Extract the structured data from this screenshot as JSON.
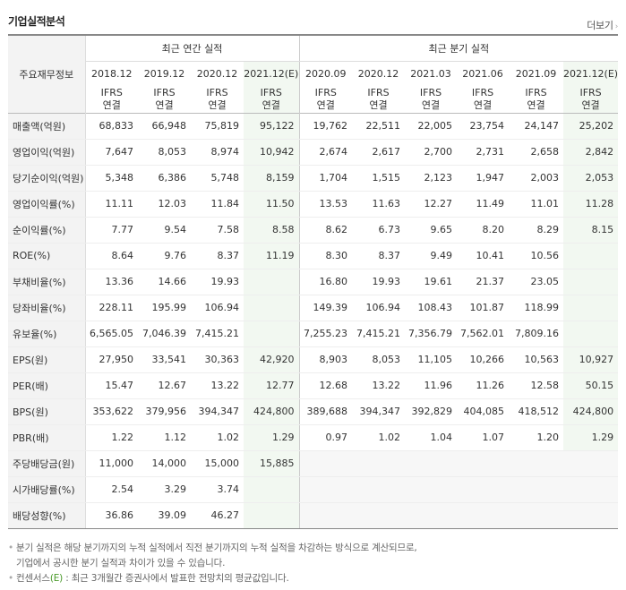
{
  "header": {
    "title": "기업실적분석",
    "more_label": "더보기",
    "more_arrow": "›"
  },
  "table": {
    "corner_label": "주요재무정보",
    "group_annual": "최근 연간 실적",
    "group_quarterly": "최근 분기 실적",
    "periods": [
      "2018.12",
      "2019.12",
      "2020.12",
      "2021.12(E)",
      "2020.09",
      "2020.12",
      "2021.03",
      "2021.06",
      "2021.09",
      "2021.12(E)"
    ],
    "ifrs_top": "IFRS",
    "ifrs_bottom": "연결",
    "rows": [
      {
        "label": "매출액(억원)",
        "values": [
          "68,833",
          "66,948",
          "75,819",
          "95,122",
          "19,762",
          "22,511",
          "22,005",
          "23,754",
          "24,147",
          "25,202"
        ]
      },
      {
        "label": "영업이익(억원)",
        "values": [
          "7,647",
          "8,053",
          "8,974",
          "10,942",
          "2,674",
          "2,617",
          "2,700",
          "2,731",
          "2,658",
          "2,842"
        ]
      },
      {
        "label": "당기순이익(억원)",
        "values": [
          "5,348",
          "6,386",
          "5,748",
          "8,159",
          "1,704",
          "1,515",
          "2,123",
          "1,947",
          "2,003",
          "2,053"
        ]
      },
      {
        "label": "영업이익률(%)",
        "values": [
          "11.11",
          "12.03",
          "11.84",
          "11.50",
          "13.53",
          "11.63",
          "12.27",
          "11.49",
          "11.01",
          "11.28"
        ]
      },
      {
        "label": "순이익률(%)",
        "values": [
          "7.77",
          "9.54",
          "7.58",
          "8.58",
          "8.62",
          "6.73",
          "9.65",
          "8.20",
          "8.29",
          "8.15"
        ]
      },
      {
        "label": "ROE(%)",
        "values": [
          "8.64",
          "9.76",
          "8.37",
          "11.19",
          "8.30",
          "8.37",
          "9.49",
          "10.41",
          "10.56",
          ""
        ]
      },
      {
        "label": "부채비율(%)",
        "values": [
          "13.36",
          "14.66",
          "19.93",
          "",
          "16.80",
          "19.93",
          "19.61",
          "21.37",
          "23.05",
          ""
        ]
      },
      {
        "label": "당좌비율(%)",
        "values": [
          "228.11",
          "195.99",
          "106.94",
          "",
          "149.39",
          "106.94",
          "108.43",
          "101.87",
          "118.99",
          ""
        ]
      },
      {
        "label": "유보율(%)",
        "values": [
          "6,565.05",
          "7,046.39",
          "7,415.21",
          "",
          "7,255.23",
          "7,415.21",
          "7,356.79",
          "7,562.01",
          "7,809.16",
          ""
        ]
      },
      {
        "label": "EPS(원)",
        "values": [
          "27,950",
          "33,541",
          "30,363",
          "42,920",
          "8,903",
          "8,053",
          "11,105",
          "10,266",
          "10,563",
          "10,927"
        ]
      },
      {
        "label": "PER(배)",
        "values": [
          "15.47",
          "12.67",
          "13.22",
          "12.77",
          "12.68",
          "13.22",
          "11.96",
          "11.26",
          "12.58",
          "50.15"
        ]
      },
      {
        "label": "BPS(원)",
        "values": [
          "353,622",
          "379,956",
          "394,347",
          "424,800",
          "389,688",
          "394,347",
          "392,829",
          "404,085",
          "418,512",
          "424,800"
        ]
      },
      {
        "label": "PBR(배)",
        "values": [
          "1.22",
          "1.12",
          "1.02",
          "1.29",
          "0.97",
          "1.02",
          "1.04",
          "1.07",
          "1.20",
          "1.29"
        ]
      },
      {
        "label": "주당배당금(원)",
        "values": [
          "11,000",
          "14,000",
          "15,000",
          "15,885",
          "",
          "",
          "",
          "",
          "",
          ""
        ]
      },
      {
        "label": "시가배당률(%)",
        "values": [
          "2.54",
          "3.29",
          "3.74",
          "",
          "",
          "",
          "",
          "",
          "",
          ""
        ]
      },
      {
        "label": "배당성향(%)",
        "values": [
          "36.86",
          "39.09",
          "46.27",
          "",
          "",
          "",
          "",
          "",
          "",
          ""
        ]
      }
    ]
  },
  "notes": {
    "line1": "분기 실적은 해당 분기까지의 누적 실적에서 직전 분기까지의 누적 실적을 차감하는 방식으로 계산되므로,",
    "line2": "기업에서 공시한 분기 실적과 차이가 있을 수 있습니다.",
    "line3_prefix": "컨센서스",
    "line3_e": "(E)",
    "line3_suffix": ": 최근 3개월간 증권사에서 발표한 전망치의 평균값입니다.",
    "bullet": "•"
  }
}
